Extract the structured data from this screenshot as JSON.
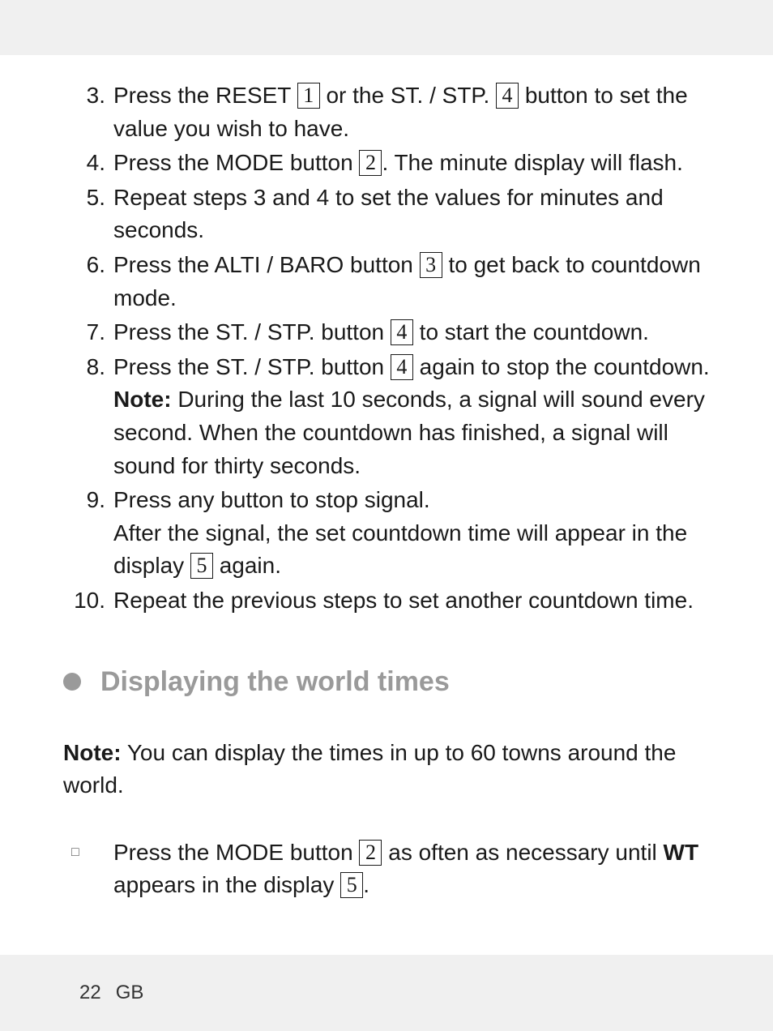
{
  "steps": [
    {
      "num": "3.",
      "parts": [
        {
          "t": "text",
          "v": "Press the RESET "
        },
        {
          "t": "box",
          "v": "1"
        },
        {
          "t": "text",
          "v": " or the ST. / STP. "
        },
        {
          "t": "box",
          "v": "4"
        },
        {
          "t": "text",
          "v": " button to set the value you wish to have."
        }
      ]
    },
    {
      "num": "4.",
      "parts": [
        {
          "t": "text",
          "v": "Press the MODE button "
        },
        {
          "t": "box",
          "v": "2"
        },
        {
          "t": "text",
          "v": ". The minute display will flash."
        }
      ]
    },
    {
      "num": "5.",
      "parts": [
        {
          "t": "text",
          "v": "Repeat steps 3 and 4 to set the values for minutes and seconds."
        }
      ]
    },
    {
      "num": "6.",
      "parts": [
        {
          "t": "text",
          "v": "Press the ALTI / BARO button "
        },
        {
          "t": "box",
          "v": "3"
        },
        {
          "t": "text",
          "v": " to get back to count­down mode."
        }
      ]
    },
    {
      "num": "7.",
      "parts": [
        {
          "t": "text",
          "v": "Press the ST. / STP. button "
        },
        {
          "t": "box",
          "v": "4"
        },
        {
          "t": "text",
          "v": " to start the countdown."
        }
      ]
    },
    {
      "num": "8.",
      "parts": [
        {
          "t": "text",
          "v": "Press the ST. / STP. button "
        },
        {
          "t": "box",
          "v": "4"
        },
        {
          "t": "text",
          "v": " again to stop the countdown. "
        },
        {
          "t": "bold",
          "v": "Note:"
        },
        {
          "t": "text",
          "v": " During the last 10 seconds, a signal will sound every second. When the countdown has finished, a signal will sound for thirty seconds."
        }
      ]
    },
    {
      "num": "9.",
      "parts": [
        {
          "t": "text",
          "v": "Press any button to stop signal."
        },
        {
          "t": "br"
        },
        {
          "t": "text",
          "v": "After the signal, the set countdown time will appear in the display "
        },
        {
          "t": "box",
          "v": "5"
        },
        {
          "t": "text",
          "v": " again."
        }
      ]
    },
    {
      "num": "10.",
      "parts": [
        {
          "t": "text",
          "v": "Repeat the previous steps to set another countdown time."
        }
      ]
    }
  ],
  "section_title": "Displaying the world times",
  "note_para": [
    {
      "t": "bold",
      "v": "Note:"
    },
    {
      "t": "text",
      "v": " You can display the times in up to 60 towns around the world."
    }
  ],
  "bullet": [
    {
      "t": "text",
      "v": "Press the MODE button "
    },
    {
      "t": "box",
      "v": "2"
    },
    {
      "t": "text",
      "v": " as often as necessary until "
    },
    {
      "t": "bold",
      "v": "WT"
    },
    {
      "t": "text",
      "v": " appears in the display "
    },
    {
      "t": "box",
      "v": "5"
    },
    {
      "t": "text",
      "v": "."
    }
  ],
  "footer": {
    "page": "22",
    "lang": "GB"
  }
}
